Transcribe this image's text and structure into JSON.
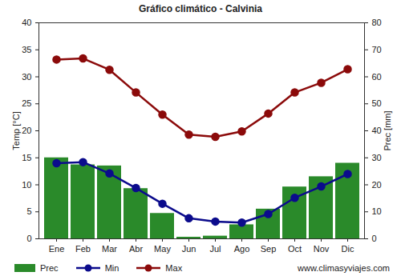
{
  "chart_data": {
    "type": "bar",
    "title": "Gráfico climático - Calvinia",
    "y_label": "Temp [°C]",
    "y2_label": "Prec [mm]",
    "caption": "www.climasyviajes.com",
    "categories": [
      "Ene",
      "Feb",
      "Mar",
      "Abr",
      "May",
      "Jun",
      "Jul",
      "Ago",
      "Sep",
      "Oct",
      "Nov",
      "Dic"
    ],
    "series": [
      {
        "name": "Prec",
        "type": "bar",
        "axis": "y2",
        "color": "#2a8a2a",
        "values": [
          30,
          27.4,
          27,
          18.6,
          9.4,
          0.6,
          1,
          5.2,
          11,
          19.2,
          23,
          28
        ]
      },
      {
        "name": "Min",
        "type": "line",
        "marker": "circle",
        "color": "#0b0b8c",
        "values": [
          14,
          14.2,
          12.1,
          9.4,
          6.5,
          3.8,
          3.2,
          3.0,
          4.6,
          7.6,
          9.7,
          12.0
        ]
      },
      {
        "name": "Max",
        "type": "line",
        "marker": "circle",
        "color": "#8b0a0a",
        "values": [
          33.2,
          33.4,
          31.3,
          27.1,
          23,
          19.3,
          18.9,
          19.9,
          23.2,
          27.1,
          28.9,
          31.4
        ]
      }
    ],
    "ylim": [
      0,
      40
    ],
    "yticks": [
      0,
      5,
      10,
      15,
      20,
      25,
      30,
      35,
      40
    ],
    "y2lim": [
      0,
      80
    ],
    "y2ticks": [
      0,
      10,
      20,
      30,
      40,
      50,
      60,
      70,
      80
    ],
    "grid": false,
    "legend": "bottom"
  }
}
